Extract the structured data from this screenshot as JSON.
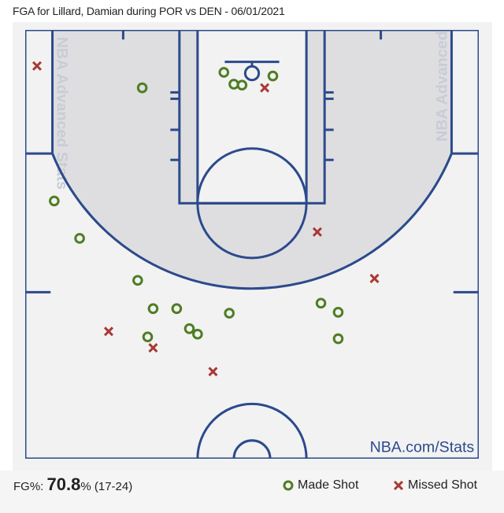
{
  "title": "FGA for Lillard, Damian during POR vs DEN - 06/01/2021",
  "watermark": "NBA Advanced Stats",
  "brand": "NBA.com/Stats",
  "summary": {
    "fg_label": "FG%:",
    "fg_value": "70.8",
    "fg_suffix": "%",
    "fg_count": "(17-24)"
  },
  "legend": {
    "made": "Made Shot",
    "missed": "Missed Shot"
  },
  "colors": {
    "made": "#4e7d23",
    "missed": "#a83a34",
    "lines": "#2c4a8c",
    "shade": "#dedee0",
    "court": "#f2f2f2"
  },
  "chart_data": {
    "type": "scatter",
    "title": "FGA for Lillard, Damian during POR vs DEN - 06/01/2021",
    "xlim": [
      -250,
      250
    ],
    "ylim": [
      -47.5,
      422.5
    ],
    "grid": false,
    "legend_position": "bottom-right",
    "series": [
      {
        "name": "Made Shot",
        "marker": "circle",
        "points": [
          [
            -121,
            16
          ],
          [
            -31,
            -1
          ],
          [
            -20,
            12
          ],
          [
            -11,
            13
          ],
          [
            23,
            3
          ],
          [
            -218,
            140
          ],
          [
            -190,
            181
          ],
          [
            -126,
            227
          ],
          [
            -109,
            258
          ],
          [
            -83,
            258
          ],
          [
            -115,
            289
          ],
          [
            -69,
            280
          ],
          [
            -60,
            286
          ],
          [
            -25,
            263
          ],
          [
            76,
            252
          ],
          [
            95,
            262
          ],
          [
            95,
            291
          ]
        ]
      },
      {
        "name": "Missed Shot",
        "marker": "x",
        "points": [
          [
            -237,
            -8
          ],
          [
            14,
            16
          ],
          [
            72,
            174
          ],
          [
            135,
            225
          ],
          [
            -158,
            283
          ],
          [
            -109,
            301
          ],
          [
            -43,
            327
          ]
        ]
      }
    ]
  }
}
